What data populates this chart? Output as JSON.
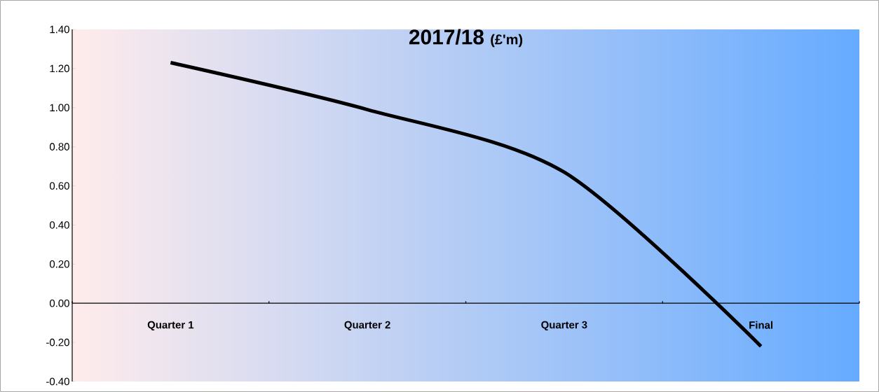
{
  "chart_data": {
    "type": "line",
    "title": "2017/18",
    "subtitle": "(£'m)",
    "categories": [
      "Quarter 1",
      "Quarter 2",
      "Quarter 3",
      "Final"
    ],
    "series": [
      {
        "color": "#000000",
        "values": [
          1.23,
          0.99,
          0.67,
          -0.22
        ]
      }
    ],
    "ylim": [
      -0.4,
      1.4
    ],
    "yticks": [
      {
        "value": -0.4,
        "label": "-0.40"
      },
      {
        "value": -0.2,
        "label": "-0.20"
      },
      {
        "value": 0,
        "label": "0.00"
      },
      {
        "value": 0.2,
        "label": "0.20"
      },
      {
        "value": 0.4,
        "label": "0.40"
      },
      {
        "value": 0.6,
        "label": "0.60"
      },
      {
        "value": 0.8,
        "label": "0.80"
      },
      {
        "value": 1.0,
        "label": "1.00"
      },
      {
        "value": 1.2,
        "label": "1.20"
      },
      {
        "value": 1.4,
        "label": "1.40"
      }
    ],
    "grid": false,
    "legend": false,
    "marker": "none",
    "line_style": "solid"
  }
}
